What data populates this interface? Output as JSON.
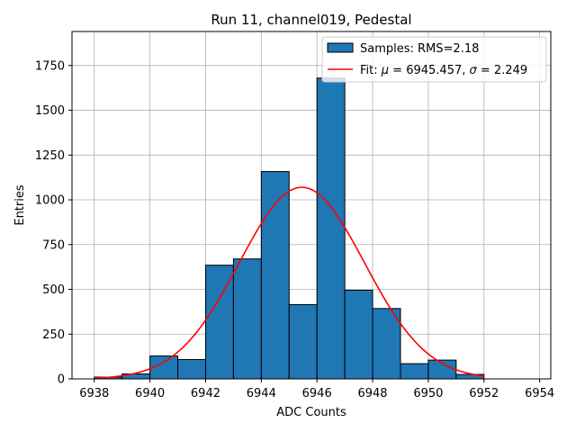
{
  "chart_data": {
    "type": "bar",
    "title": "Run 11, channel019, Pedestal",
    "xlabel": "ADC Counts",
    "ylabel": "Entries",
    "xlim": [
      6937.2,
      6954.4
    ],
    "ylim": [
      0,
      1940
    ],
    "grid": true,
    "legend_position": "top-right",
    "xticks": [
      6938,
      6940,
      6942,
      6944,
      6946,
      6948,
      6950,
      6952,
      6954
    ],
    "yticks": [
      0,
      250,
      500,
      750,
      1000,
      1250,
      1500,
      1750
    ],
    "histogram": {
      "name": "Samples: RMS=2.18",
      "bin_edges": [
        6938,
        6939,
        6940,
        6941,
        6942,
        6943,
        6944,
        6945,
        6946,
        6947,
        6948,
        6949,
        6950,
        6951,
        6952
      ],
      "counts": [
        10,
        28,
        128,
        108,
        635,
        670,
        1158,
        415,
        1680,
        495,
        393,
        85,
        105,
        25
      ],
      "color": "#1f77b4"
    },
    "fit": {
      "name_prefix": "Fit: ",
      "mu_symbol": "μ",
      "mu_text": " = 6945.457, ",
      "sigma_symbol": "σ",
      "sigma_text": " = 2.249",
      "mu": 6945.457,
      "sigma": 2.249,
      "amplitude": 1070,
      "x_start": 6938,
      "x_end": 6952,
      "color": "#ff0000"
    }
  }
}
